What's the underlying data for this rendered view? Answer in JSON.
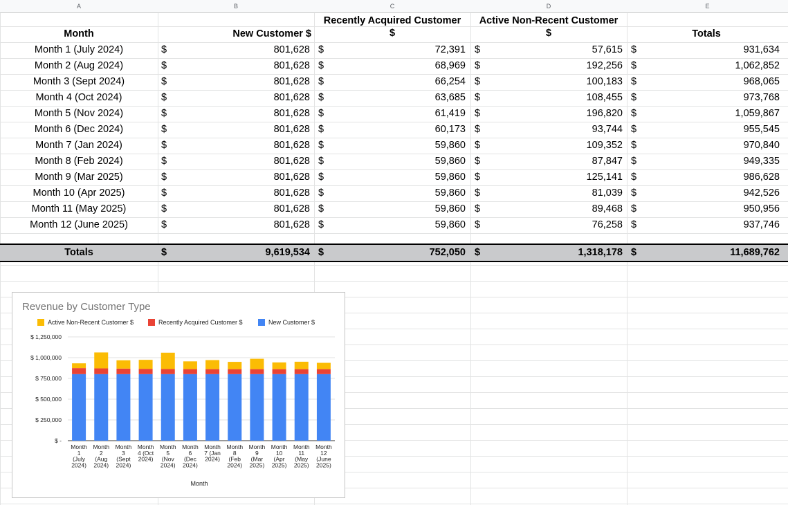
{
  "columns": [
    "A",
    "B",
    "C",
    "D",
    "E"
  ],
  "headers": {
    "month": "Month",
    "new": "New Customer $",
    "recent_line1": "Recently Acquired Customer",
    "recent_line2": "$",
    "active_line1": "Active Non-Recent Customer",
    "active_line2": "$",
    "totals": "Totals"
  },
  "currency_symbol": "$",
  "rows": [
    {
      "month": "Month 1 (July 2024)",
      "new": "801,628",
      "recent": "72,391",
      "active": "57,615",
      "total": "931,634"
    },
    {
      "month": "Month 2 (Aug 2024)",
      "new": "801,628",
      "recent": "68,969",
      "active": "192,256",
      "total": "1,062,852"
    },
    {
      "month": "Month 3 (Sept 2024)",
      "new": "801,628",
      "recent": "66,254",
      "active": "100,183",
      "total": "968,065"
    },
    {
      "month": "Month 4 (Oct 2024)",
      "new": "801,628",
      "recent": "63,685",
      "active": "108,455",
      "total": "973,768"
    },
    {
      "month": "Month 5 (Nov 2024)",
      "new": "801,628",
      "recent": "61,419",
      "active": "196,820",
      "total": "1,059,867"
    },
    {
      "month": "Month 6 (Dec 2024)",
      "new": "801,628",
      "recent": "60,173",
      "active": "93,744",
      "total": "955,545"
    },
    {
      "month": "Month 7 (Jan 2024)",
      "new": "801,628",
      "recent": "59,860",
      "active": "109,352",
      "total": "970,840"
    },
    {
      "month": "Month 8 (Feb 2024)",
      "new": "801,628",
      "recent": "59,860",
      "active": "87,847",
      "total": "949,335"
    },
    {
      "month": "Month 9 (Mar 2025)",
      "new": "801,628",
      "recent": "59,860",
      "active": "125,141",
      "total": "986,628"
    },
    {
      "month": "Month 10 (Apr 2025)",
      "new": "801,628",
      "recent": "59,860",
      "active": "81,039",
      "total": "942,526"
    },
    {
      "month": "Month 11 (May 2025)",
      "new": "801,628",
      "recent": "59,860",
      "active": "89,468",
      "total": "950,956"
    },
    {
      "month": "Month 12 (June 2025)",
      "new": "801,628",
      "recent": "59,860",
      "active": "76,258",
      "total": "937,746"
    }
  ],
  "totals_row": {
    "label": "Totals",
    "new": "9,619,534",
    "recent": "752,050",
    "active": "1,318,178",
    "total": "11,689,762"
  },
  "chart_data": {
    "type": "bar",
    "stacked": true,
    "title": "Revenue by Customer Type",
    "xlabel": "Month",
    "ylabel": "",
    "ylim": [
      0,
      1250000
    ],
    "yticks": [
      0,
      250000,
      500000,
      750000,
      1000000,
      1250000
    ],
    "ytick_labels": [
      "$ -",
      "$ 250,000",
      "$ 500,000",
      "$ 750,000",
      "$ 1,000,000",
      "$ 1,250,000"
    ],
    "grid": true,
    "legend_position": "top",
    "categories": [
      [
        "Month",
        "1",
        "(July",
        "2024)"
      ],
      [
        "Month",
        "2",
        "(Aug",
        "2024)"
      ],
      [
        "Month",
        "3",
        "(Sept",
        "2024)"
      ],
      [
        "Month",
        "4 (Oct",
        "2024)"
      ],
      [
        "Month",
        "5",
        "(Nov",
        "2024)"
      ],
      [
        "Month",
        "6",
        "(Dec",
        "2024)"
      ],
      [
        "Month",
        "7 (Jan",
        "2024)"
      ],
      [
        "Month",
        "8",
        "(Feb",
        "2024)"
      ],
      [
        "Month",
        "9",
        "(Mar",
        "2025)"
      ],
      [
        "Month",
        "10",
        "(Apr",
        "2025)"
      ],
      [
        "Month",
        "11",
        "(May",
        "2025)"
      ],
      [
        "Month",
        "12",
        "(June",
        "2025)"
      ]
    ],
    "series": [
      {
        "name": "New Customer $",
        "color": "#4285f4",
        "values": [
          801628,
          801628,
          801628,
          801628,
          801628,
          801628,
          801628,
          801628,
          801628,
          801628,
          801628,
          801628
        ]
      },
      {
        "name": "Recently Acquired Customer $",
        "color": "#ea4335",
        "values": [
          72391,
          68969,
          66254,
          63685,
          61419,
          60173,
          59860,
          59860,
          59860,
          59860,
          59860,
          59860
        ]
      },
      {
        "name": "Active Non-Recent Customer $",
        "color": "#fbbc04",
        "values": [
          57615,
          192256,
          100183,
          108455,
          196820,
          93744,
          109352,
          87847,
          125141,
          81039,
          89468,
          76258
        ]
      }
    ],
    "legend_order": [
      "Active Non-Recent Customer $",
      "Recently Acquired Customer $",
      "New Customer $"
    ]
  }
}
